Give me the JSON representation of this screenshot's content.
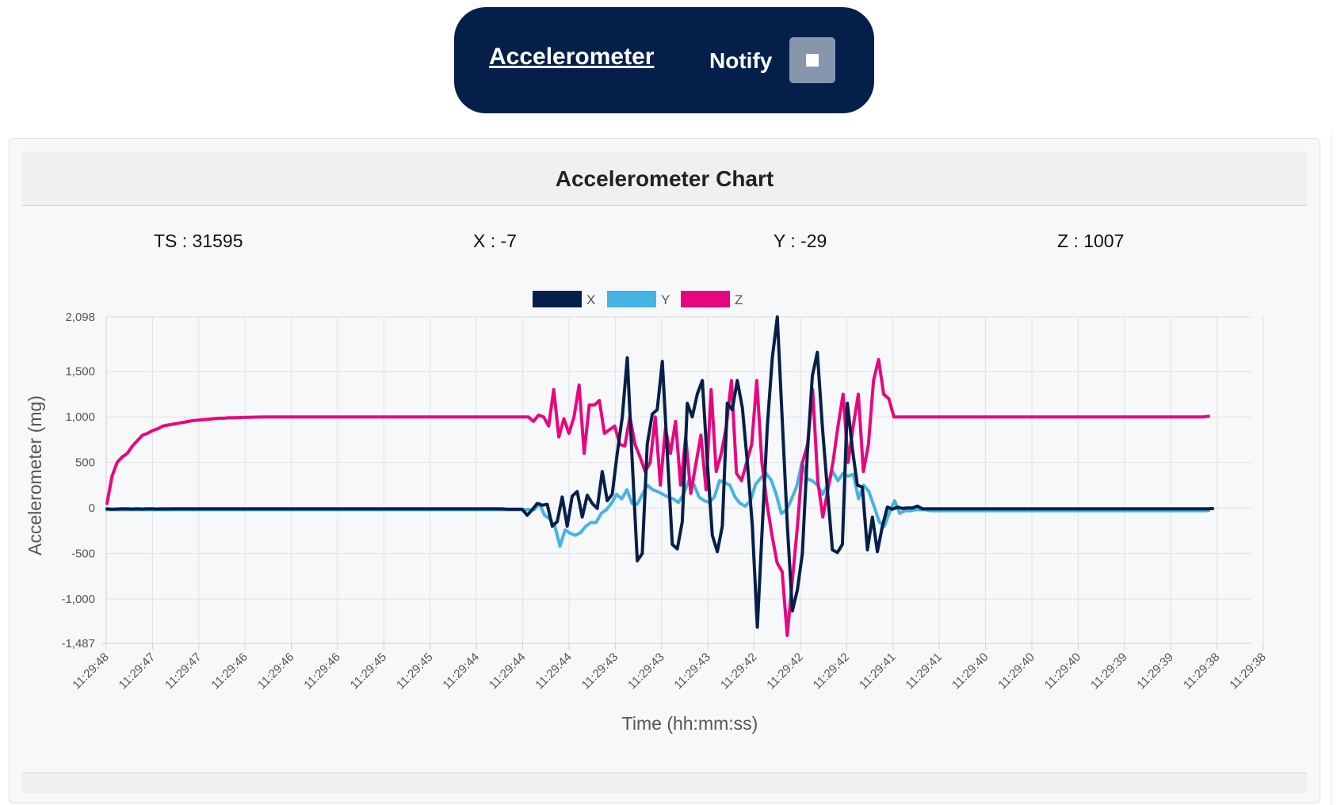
{
  "header": {
    "title": "Accelerometer",
    "notify_label": "Notify",
    "stop_icon": "stop-icon"
  },
  "card": {
    "title": "Accelerometer Chart",
    "readouts": {
      "ts": "TS : 31595",
      "x": "X : -7",
      "y": "Y : -29",
      "z": "Z : 1007"
    }
  },
  "colors": {
    "x": "#04204a",
    "y": "#45b3e3",
    "z": "#e6077f",
    "panel": "#04204a",
    "button": "#8596ad"
  },
  "chart_data": {
    "type": "line",
    "title": "",
    "xlabel": "Time (hh:mm:ss)",
    "ylabel": "Accelerometer (mg)",
    "ylim": [
      -1487,
      2098
    ],
    "yticks": [
      2098,
      1500,
      1000,
      500,
      0,
      -500,
      -1000,
      -1487
    ],
    "ytick_labels": [
      "2,098",
      "1,500",
      "1,000",
      "500",
      "0",
      "-500",
      "-1,000",
      "-1,487"
    ],
    "grid": true,
    "legend_position": "top",
    "x_tick_labels": [
      "11:29:48",
      "11:29:47",
      "11:29:47",
      "11:29:46",
      "11:29:46",
      "11:29:46",
      "11:29:45",
      "11:29:45",
      "11:29:44",
      "11:29:44",
      "11:29:44",
      "11:29:43",
      "11:29:43",
      "11:29:43",
      "11:29:42",
      "11:29:42",
      "11:29:42",
      "11:29:41",
      "11:29:41",
      "11:29:40",
      "11:29:40",
      "11:29:40",
      "11:29:39",
      "11:29:39",
      "11:29:38",
      "11:29:38"
    ],
    "series": [
      {
        "name": "X",
        "color": "#04204a",
        "values": [
          -10,
          -15,
          -12,
          -10,
          -10,
          -12,
          -10,
          -12,
          -10,
          -10,
          -12,
          -10,
          -11,
          -10,
          -10,
          -10,
          -10,
          -10,
          -10,
          -10,
          -10,
          -10,
          -10,
          -10,
          -10,
          -10,
          -10,
          -10,
          -10,
          -10,
          -10,
          -10,
          -10,
          -10,
          -10,
          -10,
          -10,
          -10,
          -10,
          -10,
          -10,
          -10,
          -10,
          -10,
          -10,
          -10,
          -10,
          -10,
          -10,
          -10,
          -10,
          -10,
          -10,
          -10,
          -10,
          -10,
          -10,
          -10,
          -10,
          -10,
          -10,
          -10,
          -10,
          -10,
          -10,
          -10,
          -10,
          -10,
          -10,
          -10,
          -10,
          -10,
          -10,
          -10,
          -10,
          -10,
          -10,
          -10,
          -10,
          -10,
          -15,
          -15,
          -15,
          -15,
          -80,
          -20,
          50,
          30,
          40,
          -200,
          -150,
          120,
          -200,
          130,
          180,
          -100,
          140,
          50,
          -5,
          400,
          80,
          150,
          600,
          1000,
          1650,
          500,
          -580,
          -500,
          700,
          1030,
          1080,
          1610,
          600,
          -400,
          -450,
          -150,
          1150,
          1000,
          1250,
          1400,
          500,
          -300,
          -480,
          -200,
          1150,
          1080,
          1400,
          1100,
          500,
          -200,
          -1310,
          -200,
          900,
          1650,
          2098,
          950,
          -200,
          -1130,
          -900,
          -500,
          600,
          1450,
          1710,
          900,
          200,
          -460,
          -490,
          -400,
          1150,
          650,
          250,
          230,
          -460,
          -100,
          -480,
          -200,
          10,
          -15,
          10,
          -5,
          0,
          0,
          20,
          -10,
          -10,
          -10,
          -10,
          -10,
          -10,
          -10,
          -10,
          -10,
          -10,
          -10,
          -10,
          -10,
          -10,
          -10,
          -10,
          -10,
          -10,
          -10,
          -10,
          -10,
          -10,
          -10,
          -10,
          -10,
          -10,
          -10,
          -10,
          -10,
          -10,
          -10,
          -10,
          -10,
          -10,
          -10,
          -10,
          -10,
          -10,
          -10,
          -10,
          -10,
          -10,
          -10,
          -10,
          -10,
          -10,
          -10,
          -10,
          -10,
          -10,
          -10,
          -10,
          -10,
          -10,
          -10,
          -10,
          -10,
          -10,
          -7
        ]
      },
      {
        "name": "Y",
        "color": "#45b3e3",
        "values": [
          -20,
          -20,
          -20,
          -20,
          -20,
          -20,
          -20,
          -20,
          -20,
          -20,
          -20,
          -20,
          -20,
          -20,
          -20,
          -20,
          -20,
          -20,
          -20,
          -20,
          -20,
          -20,
          -20,
          -20,
          -20,
          -20,
          -20,
          -20,
          -20,
          -20,
          -20,
          -20,
          -20,
          -20,
          -20,
          -20,
          -20,
          -20,
          -20,
          -20,
          -20,
          -20,
          -20,
          -20,
          -20,
          -20,
          -20,
          -20,
          -20,
          -20,
          -20,
          -20,
          -20,
          -20,
          -20,
          -20,
          -20,
          -20,
          -20,
          -20,
          -20,
          -20,
          -20,
          -20,
          -20,
          -20,
          -20,
          -20,
          -20,
          -20,
          -20,
          -20,
          -20,
          -20,
          -20,
          -20,
          -20,
          -20,
          -20,
          -20,
          -20,
          -20,
          -20,
          -20,
          50,
          -80,
          -120,
          -200,
          -420,
          -240,
          -280,
          -300,
          -270,
          -200,
          -160,
          -160,
          -60,
          -20,
          50,
          150,
          100,
          200,
          50,
          40,
          150,
          250,
          200,
          180,
          150,
          120,
          100,
          60,
          150,
          300,
          260,
          120,
          80,
          60,
          120,
          300,
          280,
          250,
          120,
          50,
          20,
          80,
          260,
          330,
          380,
          310,
          150,
          -60,
          -20,
          100,
          240,
          500,
          320,
          300,
          250,
          150,
          250,
          400,
          300,
          380,
          350,
          370,
          100,
          250,
          180,
          20,
          -150,
          -200,
          -50,
          80,
          -60,
          -30,
          -30,
          -20,
          -20,
          -20,
          -30,
          -30,
          -30,
          -30,
          -30,
          -30,
          -30,
          -30,
          -30,
          -30,
          -30,
          -30,
          -30,
          -30,
          -30,
          -30,
          -30,
          -30,
          -30,
          -30,
          -30,
          -30,
          -30,
          -30,
          -30,
          -30,
          -30,
          -30,
          -30,
          -30,
          -30,
          -30,
          -30,
          -30,
          -30,
          -30,
          -30,
          -30,
          -30,
          -30,
          -30,
          -30,
          -30,
          -30,
          -30,
          -30,
          -30,
          -30,
          -30,
          -30,
          -30,
          -30,
          -30,
          -30,
          -29
        ]
      },
      {
        "name": "Z",
        "color": "#e6077f",
        "values": [
          50,
          350,
          500,
          560,
          600,
          680,
          740,
          800,
          820,
          850,
          870,
          900,
          910,
          920,
          930,
          940,
          950,
          960,
          965,
          970,
          975,
          980,
          985,
          985,
          990,
          990,
          992,
          995,
          995,
          997,
          998,
          1000,
          1000,
          1000,
          1000,
          1000,
          1000,
          1000,
          1000,
          1000,
          1000,
          1000,
          1000,
          1000,
          1000,
          1000,
          1000,
          1000,
          1000,
          1000,
          1000,
          1000,
          1000,
          1000,
          1000,
          1000,
          1000,
          1000,
          1000,
          1000,
          1000,
          1000,
          1000,
          1000,
          1000,
          1000,
          1000,
          1000,
          1000,
          1000,
          1000,
          1000,
          1000,
          1000,
          1000,
          1000,
          1000,
          1000,
          1000,
          1000,
          1000,
          1000,
          1000,
          1000,
          950,
          1020,
          1000,
          900,
          1300,
          780,
          980,
          820,
          1000,
          1350,
          600,
          1130,
          1130,
          1180,
          820,
          860,
          900,
          700,
          680,
          1000,
          700,
          560,
          400,
          500,
          1000,
          250,
          870,
          600,
          950,
          250,
          780,
          160,
          480,
          800,
          200,
          1300,
          400,
          600,
          900,
          1400,
          380,
          300,
          500,
          700,
          1400,
          500,
          50,
          -300,
          -600,
          -700,
          -1400,
          -800,
          -200,
          500,
          700,
          1300,
          300,
          -100,
          200,
          500,
          900,
          1250,
          500,
          900,
          1250,
          400,
          700,
          1400,
          1630,
          1250,
          1200,
          1000,
          1000,
          1000,
          1000,
          1000,
          1000,
          1000,
          1000,
          1000,
          1000,
          1000,
          1000,
          1000,
          1000,
          1000,
          1000,
          1000,
          1000,
          1000,
          1000,
          1000,
          1000,
          1000,
          1000,
          1000,
          1000,
          1000,
          1000,
          1000,
          1000,
          1000,
          1000,
          1000,
          1000,
          1000,
          1000,
          1000,
          1000,
          1000,
          1000,
          1000,
          1000,
          1000,
          1000,
          1000,
          1000,
          1000,
          1000,
          1000,
          1000,
          1000,
          1000,
          1000,
          1000,
          1000,
          1000,
          1000,
          1000,
          1000,
          1000,
          1000,
          1000,
          1007
        ]
      }
    ]
  }
}
